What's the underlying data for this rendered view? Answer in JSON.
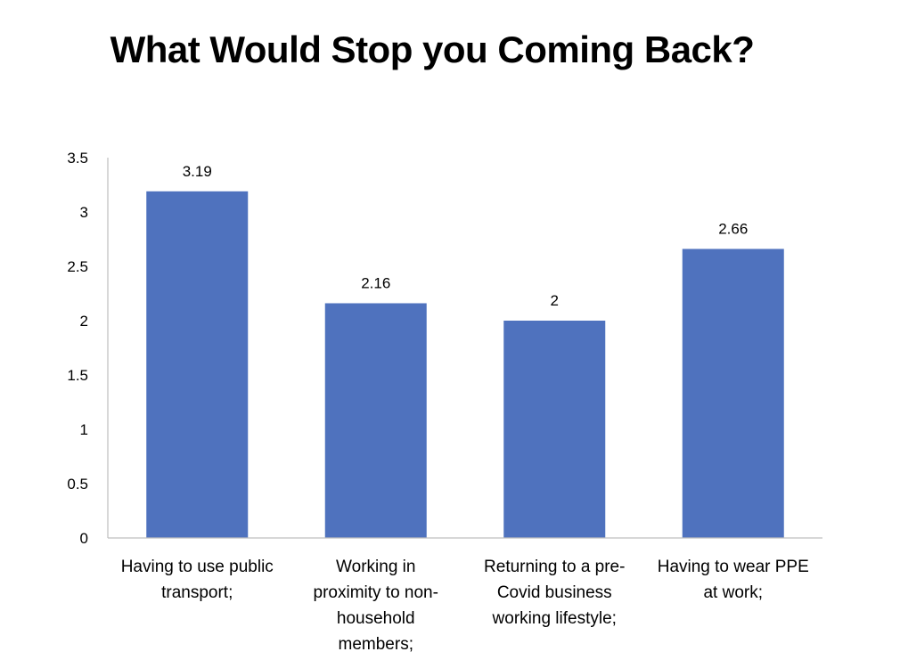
{
  "chart_data": {
    "type": "bar",
    "title": "What Would Stop you Coming Back?",
    "xlabel": "",
    "ylabel": "",
    "categories": [
      "Having to use public transport;",
      "Working in proximity to non-household members;",
      "Returning to a pre-Covid business working lifestyle;",
      "Having to wear PPE at work;"
    ],
    "category_lines": [
      [
        "Having to use public",
        "transport;"
      ],
      [
        "Working in",
        "proximity to non-",
        "household",
        "members;"
      ],
      [
        "Returning to a pre-",
        "Covid business",
        "working lifestyle;"
      ],
      [
        "Having to wear PPE",
        "at work;"
      ]
    ],
    "values": [
      3.19,
      2.16,
      2,
      2.66
    ],
    "data_labels": [
      "3.19",
      "2.16",
      "2",
      "2.66"
    ],
    "ylim": [
      0,
      3.5
    ],
    "yticks": [
      0,
      0.5,
      1,
      1.5,
      2,
      2.5,
      3,
      3.5
    ],
    "ytick_labels": [
      "0",
      "0.5",
      "1",
      "1.5",
      "2",
      "2.5",
      "3",
      "3.5"
    ],
    "grid": false,
    "legend": "none",
    "bar_color": "#4F72BE",
    "axis_color": "#BFBFBF"
  }
}
